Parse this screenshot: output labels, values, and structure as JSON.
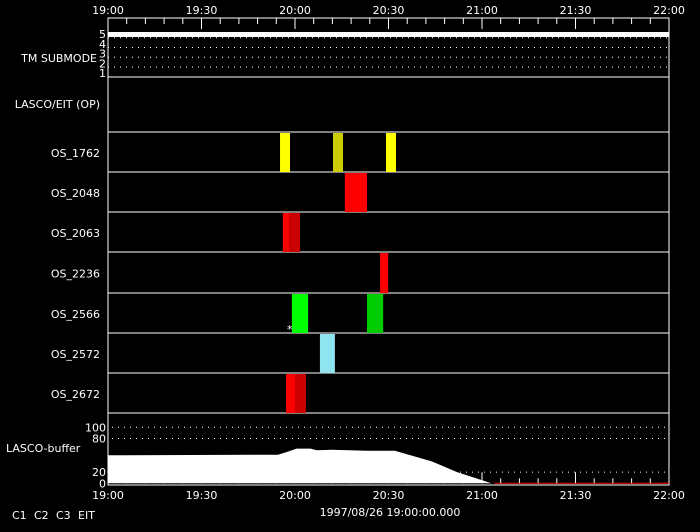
{
  "chart_data": {
    "type": "timeline",
    "date_label": "1997/08/26 19:00:00.000",
    "x_range": [
      "19:00",
      "22:00"
    ],
    "x_tick_labels": [
      "19:00",
      "19:30",
      "20:00",
      "20:30",
      "21:00",
      "21:30",
      "22:00"
    ],
    "tm_submode": {
      "label": "TM SUBMODE",
      "levels": [
        "1",
        "2",
        "3",
        "4",
        "5"
      ],
      "value": 5,
      "start": "19:00",
      "end": "22:00"
    },
    "lasco_eit_op": {
      "label": "LASCO/EIT (OP)",
      "intervals": []
    },
    "rows": [
      {
        "label": "OS_1762",
        "intervals": [
          {
            "start": "19:55.2",
            "end": "19:58.4",
            "color": "#ffff00"
          },
          {
            "start": "20:12.2",
            "end": "20:15.4",
            "color": "#cccc00"
          },
          {
            "start": "20:29.2",
            "end": "20:32.4",
            "color": "#ffff00"
          }
        ]
      },
      {
        "label": "OS_2048",
        "intervals": [
          {
            "start": "20:16.0",
            "end": "20:23.1",
            "color": "#ff0000"
          }
        ]
      },
      {
        "label": "OS_2063",
        "intervals": [
          {
            "start": "19:56.1",
            "end": "19:58.1",
            "color": "#ff0000"
          },
          {
            "start": "19:58.1",
            "end": "20:01.6",
            "color": "#cc0000"
          }
        ]
      },
      {
        "label": "OS_2236",
        "intervals": [
          {
            "start": "20:27.3",
            "end": "20:29.9",
            "color": "#ff0000"
          }
        ]
      },
      {
        "label": "OS_2566",
        "intervals": [
          {
            "start": "19:59.0",
            "end": "20:04.2",
            "color": "#00ff00"
          },
          {
            "start": "20:23.1",
            "end": "20:28.3",
            "color": "#00cc00"
          }
        ]
      },
      {
        "label": "OS_2572",
        "intervals": [
          {
            "start": "20:08.0",
            "end": "20:12.8",
            "color": "#90e4f0"
          }
        ]
      },
      {
        "label": "OS_2672",
        "intervals": [
          {
            "start": "19:57.1",
            "end": "20:00.0",
            "color": "#ff0000"
          },
          {
            "start": "20:00.0",
            "end": "20:03.5",
            "color": "#cc0000"
          }
        ]
      }
    ],
    "buffer": {
      "label": "LASCO-buffer",
      "y_tick_labels": [
        "0",
        "20",
        "80",
        "100"
      ],
      "ylim": [
        0,
        100
      ],
      "times": [
        "19:00",
        "19:54.5",
        "19:57.5",
        "20:00.5",
        "20:05",
        "20:07",
        "20:12",
        "20:23",
        "20:28",
        "20:32",
        "20:34",
        "20:44",
        "20:52",
        "21:03",
        "21:04",
        "22:00"
      ],
      "values": [
        50,
        51,
        56,
        62,
        62,
        59,
        60,
        58,
        58,
        58,
        55,
        39,
        20,
        0,
        0,
        0
      ]
    },
    "legend": [
      {
        "label": "C1",
        "color": "#ff0000"
      },
      {
        "label": "C2",
        "color": "#00ff00"
      },
      {
        "label": "C3",
        "color": "#90e4f0"
      },
      {
        "label": "EIT",
        "color": "#ffff00"
      }
    ]
  }
}
